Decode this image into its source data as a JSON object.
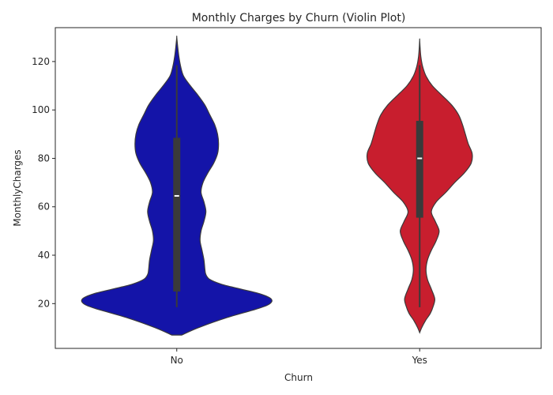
{
  "chart_data": {
    "type": "violin",
    "title": "Monthly Charges by Churn (Violin Plot)",
    "xlabel": "Churn",
    "ylabel": "MonthlyCharges",
    "categories": [
      "No",
      "Yes"
    ],
    "y_ticks": [
      20,
      40,
      60,
      80,
      100,
      120
    ],
    "ylim": [
      1.5,
      134
    ],
    "grid": false,
    "colors": {
      "No": "#1414a8",
      "Yes": "#c81e2e"
    },
    "violins": [
      {
        "category": "No",
        "color": "#1414a8",
        "q1": 25,
        "median": 64.5,
        "q3": 88.5,
        "whisker_low": 18.5,
        "whisker_high": 118.5,
        "density": [
          [
            7,
            0.05
          ],
          [
            10,
            0.22
          ],
          [
            14,
            0.5
          ],
          [
            18,
            0.84
          ],
          [
            20,
            0.96
          ],
          [
            22,
            0.97
          ],
          [
            24,
            0.86
          ],
          [
            26,
            0.66
          ],
          [
            28,
            0.46
          ],
          [
            30,
            0.34
          ],
          [
            32,
            0.3
          ],
          [
            34,
            0.29
          ],
          [
            38,
            0.28
          ],
          [
            42,
            0.26
          ],
          [
            46,
            0.24
          ],
          [
            50,
            0.25
          ],
          [
            54,
            0.28
          ],
          [
            58,
            0.3
          ],
          [
            62,
            0.28
          ],
          [
            66,
            0.25
          ],
          [
            70,
            0.27
          ],
          [
            74,
            0.32
          ],
          [
            78,
            0.38
          ],
          [
            82,
            0.42
          ],
          [
            86,
            0.43
          ],
          [
            90,
            0.42
          ],
          [
            94,
            0.39
          ],
          [
            98,
            0.34
          ],
          [
            102,
            0.29
          ],
          [
            106,
            0.22
          ],
          [
            110,
            0.14
          ],
          [
            114,
            0.07
          ],
          [
            118,
            0.04
          ],
          [
            122,
            0.022
          ],
          [
            126,
            0.01
          ],
          [
            130,
            0.0
          ]
        ]
      },
      {
        "category": "Yes",
        "color": "#c81e2e",
        "q1": 55.5,
        "median": 80,
        "q3": 95.5,
        "whisker_low": 18.5,
        "whisker_high": 118.5,
        "density": [
          [
            8,
            0.0
          ],
          [
            10,
            0.02
          ],
          [
            13,
            0.06
          ],
          [
            16,
            0.11
          ],
          [
            19,
            0.14
          ],
          [
            22,
            0.155
          ],
          [
            26,
            0.12
          ],
          [
            30,
            0.08
          ],
          [
            34,
            0.065
          ],
          [
            38,
            0.08
          ],
          [
            42,
            0.12
          ],
          [
            46,
            0.17
          ],
          [
            50,
            0.2
          ],
          [
            54,
            0.16
          ],
          [
            58,
            0.12
          ],
          [
            62,
            0.17
          ],
          [
            66,
            0.27
          ],
          [
            70,
            0.36
          ],
          [
            74,
            0.46
          ],
          [
            78,
            0.53
          ],
          [
            82,
            0.54
          ],
          [
            86,
            0.5
          ],
          [
            90,
            0.47
          ],
          [
            94,
            0.44
          ],
          [
            98,
            0.4
          ],
          [
            102,
            0.33
          ],
          [
            106,
            0.23
          ],
          [
            110,
            0.13
          ],
          [
            114,
            0.065
          ],
          [
            118,
            0.03
          ],
          [
            122,
            0.012
          ],
          [
            126,
            0.004
          ],
          [
            129,
            0.0
          ]
        ]
      }
    ]
  }
}
